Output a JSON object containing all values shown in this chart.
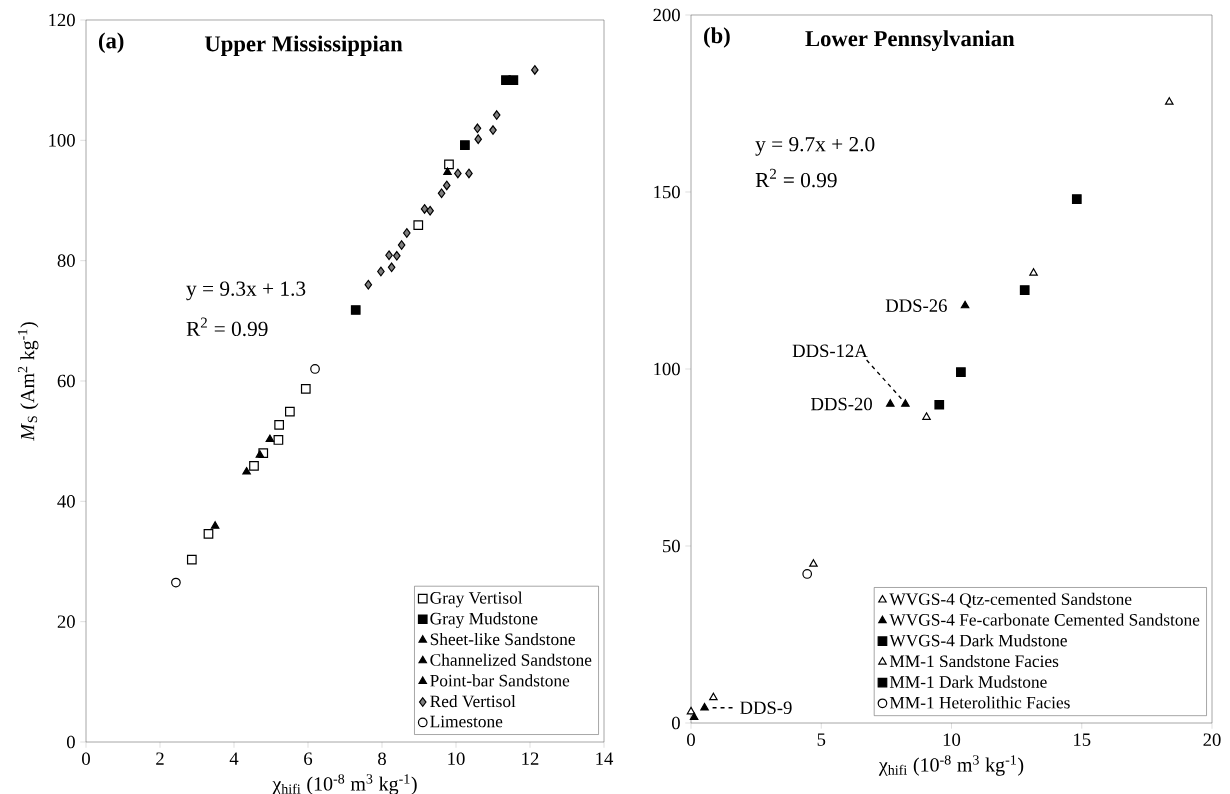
{
  "chart_data": [
    {
      "type": "scatter",
      "title": "Upper Mississippian",
      "xlabel": "χ$_{hifi}$ (10$^{-8}$ m$^{3}$ kg$^{-1}$)",
      "ylabel": "*M*$_{S}$ (Am$^{2}$ kg$^{-1}$)",
      "annotations": [
        "(a)",
        "y = 9.3x + 1.3",
        "R$^{2}$ = 0.99"
      ],
      "xlim": [
        0,
        14
      ],
      "xticks": [
        0,
        2,
        4,
        6,
        8,
        10,
        12,
        14
      ],
      "ylim": [
        0,
        120
      ],
      "yticks": [
        0,
        20,
        40,
        60,
        80,
        100,
        120
      ],
      "grid": false,
      "legend": "bottom right",
      "series": [
        {
          "name": "Gray Vertisol",
          "marker": "square",
          "color": "#ffffff",
          "x": [
            2.86,
            3.31,
            4.54,
            4.79,
            5.2,
            5.22,
            5.51,
            5.94,
            8.98,
            9.81
          ],
          "values": [
            30.3,
            34.6,
            45.9,
            48,
            50.2,
            52.7,
            54.9,
            58.7,
            85.9,
            96
          ]
        },
        {
          "name": "Gray Mudstone",
          "marker": "square",
          "color": "#000000",
          "x": [
            7.29,
            10.24,
            11.35,
            11.55
          ],
          "values": [
            71.8,
            99.2,
            110,
            110
          ]
        },
        {
          "name": "Sheet-like Sandstone",
          "marker": "triangle",
          "color": "#000000",
          "x": [
            3.49,
            4.34
          ],
          "values": [
            35.9,
            44.9
          ]
        },
        {
          "name": "Channelized Sandstone",
          "marker": "triangle",
          "color": "#000000",
          "x": [
            4.7,
            4.97
          ],
          "values": [
            47.7,
            50.3
          ]
        },
        {
          "name": "Point-bar Sandstone",
          "marker": "triangle",
          "color": "#000000",
          "x": [
            9.77
          ],
          "values": [
            94.7
          ]
        },
        {
          "name": "Red Vertisol",
          "marker": "diamond",
          "color": "#808080",
          "x": [
            7.63,
            7.97,
            8.26,
            8.19,
            8.4,
            8.53,
            8.67,
            9.15,
            9.3,
            9.61,
            9.75,
            10.05,
            10.35,
            10.58,
            10.6,
            11.0,
            11.1,
            12.13
          ],
          "values": [
            76,
            78.2,
            78.9,
            80.9,
            80.8,
            82.6,
            84.6,
            88.6,
            88.3,
            91.2,
            92.5,
            94.5,
            94.5,
            102,
            100.2,
            101.7,
            104.2,
            111.7
          ]
        },
        {
          "name": "Limestone",
          "marker": "circle",
          "color": "#ffffff",
          "x": [
            2.43,
            6.19
          ],
          "values": [
            26.5,
            62
          ]
        }
      ]
    },
    {
      "type": "scatter",
      "title": "Lower Pennsylvanian",
      "xlabel": "χ$_{hifi}$ (10$^{-8}$ m$^{3}$ kg$^{-1}$)",
      "annotations": [
        "(b)",
        "y = 9.7x + 2.0",
        "R$^{2}$ = 0.99",
        {
          "text": "DDS-26",
          "x": 10.52,
          "y": 117.9
        },
        {
          "text": "DDS-12A",
          "x": 8.23,
          "y": 90.1
        },
        {
          "text": "DDS-20",
          "x": 7.65,
          "y": 90.1
        },
        {
          "text": "DDS-9",
          "x": 0.52,
          "y": 4.3
        }
      ],
      "xlim": [
        0,
        20
      ],
      "xticks": [
        0,
        5,
        10,
        15,
        20
      ],
      "ylim": [
        0,
        200
      ],
      "yticks": [
        0,
        50,
        100,
        150,
        200
      ],
      "grid": false,
      "legend": "bottom right",
      "series": [
        {
          "name": "WVGS-4 Qtz-cemented Sandstone",
          "marker": "triangle",
          "color": "#ffffff",
          "x": [
            0.0,
            0.86
          ],
          "values": [
            3.2,
            7.2
          ]
        },
        {
          "name": "WVGS-4 Fe-carbonate Cemented Sandstone",
          "marker": "triangle",
          "color": "#000000",
          "x": [
            10.52,
            8.23,
            7.65,
            0.52,
            0.12
          ],
          "values": [
            117.9,
            90.1,
            90.1,
            4.3,
            1.6
          ]
        },
        {
          "name": "WVGS-4 Dark Mudstone",
          "marker": "square",
          "color": "#000000",
          "x": [
            12.81
          ],
          "values": [
            122.3
          ]
        },
        {
          "name": "MM-1 Sandstone Facies",
          "marker": "triangle",
          "color": "#ffffff",
          "x": [
            18.36,
            13.15,
            9.04,
            4.7
          ],
          "values": [
            175.4,
            127.1,
            86.4,
            44.9
          ]
        },
        {
          "name": "MM-1 Dark Mudstone",
          "marker": "square",
          "color": "#000000",
          "x": [
            14.81,
            10.36,
            9.53
          ],
          "values": [
            148,
            99.1,
            89.9
          ]
        },
        {
          "name": "MM-1 Heterolithic Facies",
          "marker": "circle",
          "color": "#ffffff",
          "x": [
            4.46
          ],
          "values": [
            42.1
          ]
        }
      ]
    }
  ]
}
